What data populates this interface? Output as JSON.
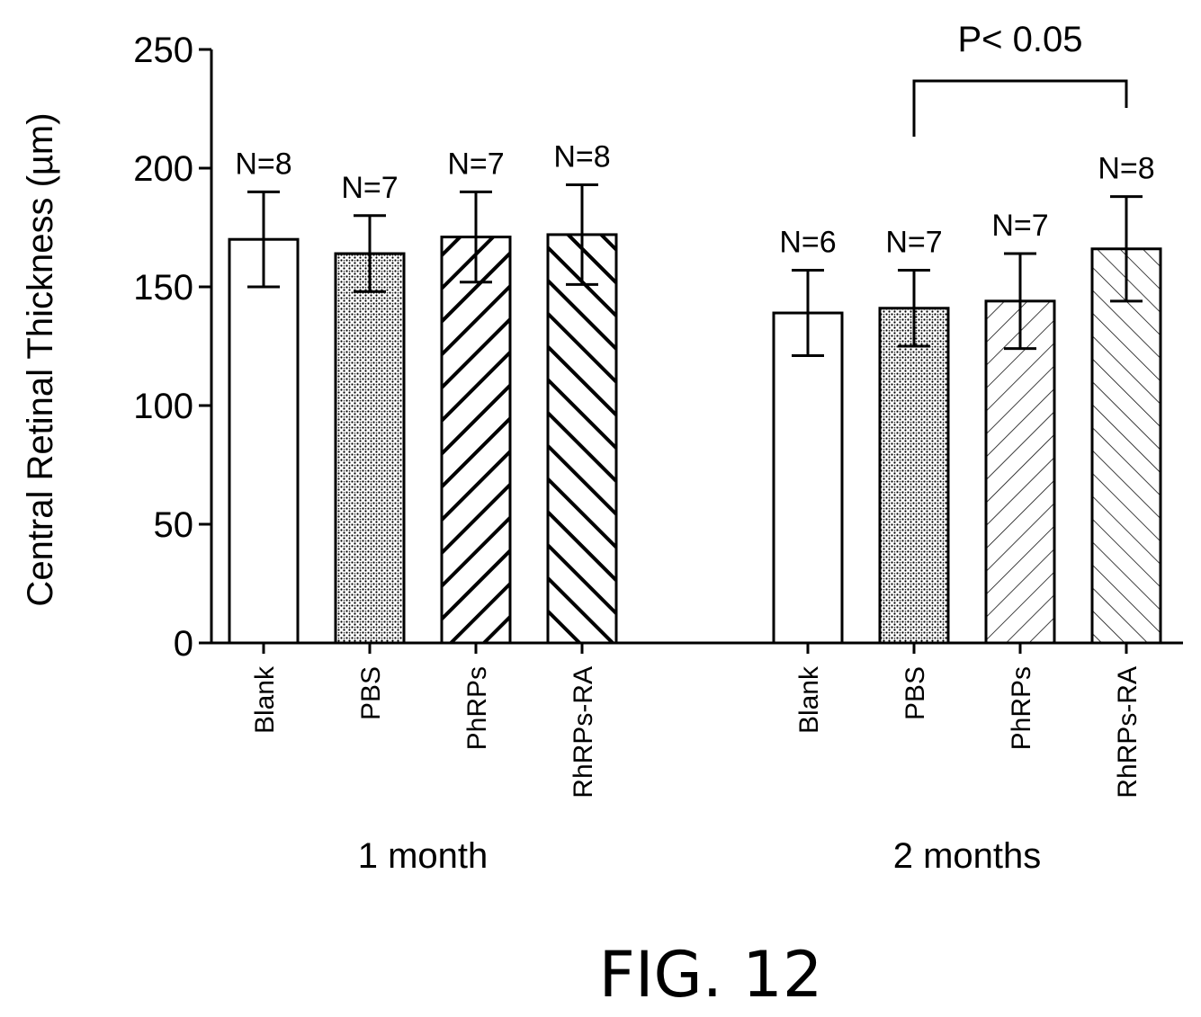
{
  "chart_data": {
    "type": "bar",
    "ylabel": "Central Retinal Thickness (µm)",
    "ylim": [
      0,
      250
    ],
    "yticks": [
      0,
      50,
      100,
      150,
      200,
      250
    ],
    "grid": false,
    "groups": [
      {
        "label": "1 month",
        "bars": [
          {
            "category": "Blank",
            "value": 170,
            "err": 20,
            "n_label": "N=8",
            "pattern": "none"
          },
          {
            "category": "PBS",
            "value": 164,
            "err": 16,
            "n_label": "N=7",
            "pattern": "dots"
          },
          {
            "category": "PhRPs",
            "value": 171,
            "err": 19,
            "n_label": "N=7",
            "pattern": "bold-backslash"
          },
          {
            "category": "RhRPs-RA",
            "value": 172,
            "err": 21,
            "n_label": "N=8",
            "pattern": "bold-slash"
          }
        ]
      },
      {
        "label": "2 months",
        "bars": [
          {
            "category": "Blank",
            "value": 139,
            "err": 18,
            "n_label": "N=6",
            "pattern": "none"
          },
          {
            "category": "PBS",
            "value": 141,
            "err": 16,
            "n_label": "N=7",
            "pattern": "dots"
          },
          {
            "category": "PhRPs",
            "value": 144,
            "err": 20,
            "n_label": "N=7",
            "pattern": "thin-backslash"
          },
          {
            "category": "RhRPs-RA",
            "value": 166,
            "err": 22,
            "n_label": "N=8",
            "pattern": "thin-slash"
          }
        ]
      }
    ],
    "annotations": [
      {
        "text": "P< 0.05",
        "from_group": 1,
        "from_bar": 1,
        "to_group": 1,
        "to_bar": 3
      }
    ]
  },
  "caption": "FIG. 12"
}
